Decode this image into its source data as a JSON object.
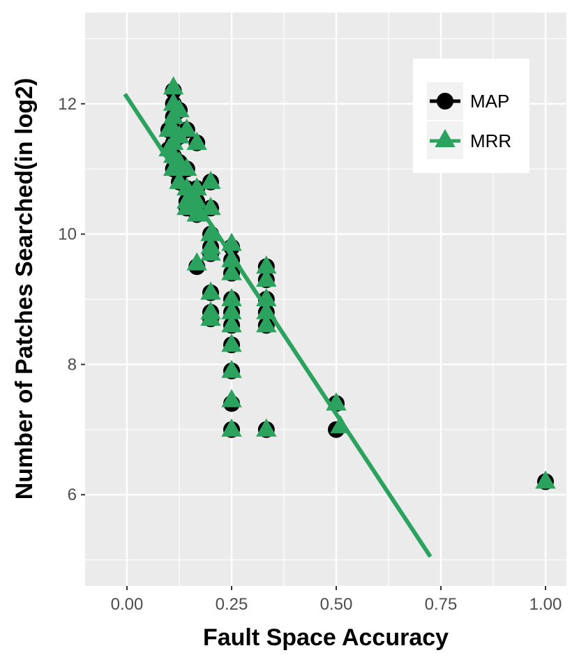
{
  "chart_data": {
    "type": "scatter",
    "title": "",
    "xlabel": "Fault Space Accuracy",
    "ylabel": "Number of Patches Searched(in log2)",
    "xlim": [
      -0.1,
      1.05
    ],
    "ylim": [
      4.6,
      13.4
    ],
    "x_ticks": [
      0.0,
      0.25,
      0.5,
      0.75,
      1.0
    ],
    "x_tick_labels": [
      "0.00",
      "0.25",
      "0.50",
      "0.75",
      "1.00"
    ],
    "y_ticks": [
      6,
      8,
      10,
      12
    ],
    "y_tick_labels": [
      "6",
      "8",
      "10",
      "12"
    ],
    "grid": true,
    "legend_position": "top-right",
    "colors": {
      "panel": "#ebebeb",
      "grid": "#ffffff",
      "map": "#000000",
      "mrr": "#2ca25f"
    },
    "series": [
      {
        "name": "MAP",
        "marker": "circle",
        "color": "#000000",
        "points": [
          [
            0.111,
            12.2
          ],
          [
            0.111,
            12.0
          ],
          [
            0.111,
            11.8
          ],
          [
            0.111,
            11.6
          ],
          [
            0.111,
            11.4
          ],
          [
            0.111,
            11.2
          ],
          [
            0.111,
            11.0
          ],
          [
            0.1,
            11.3
          ],
          [
            0.1,
            11.6
          ],
          [
            0.125,
            11.9
          ],
          [
            0.125,
            11.5
          ],
          [
            0.125,
            11.1
          ],
          [
            0.125,
            10.8
          ],
          [
            0.143,
            11.6
          ],
          [
            0.143,
            11.0
          ],
          [
            0.143,
            10.7
          ],
          [
            0.143,
            10.5
          ],
          [
            0.143,
            10.4
          ],
          [
            0.167,
            11.4
          ],
          [
            0.167,
            10.7
          ],
          [
            0.167,
            10.5
          ],
          [
            0.167,
            10.3
          ],
          [
            0.167,
            9.5
          ],
          [
            0.2,
            10.8
          ],
          [
            0.2,
            10.4
          ],
          [
            0.2,
            10.0
          ],
          [
            0.2,
            9.8
          ],
          [
            0.2,
            9.7
          ],
          [
            0.2,
            9.1
          ],
          [
            0.2,
            8.8
          ],
          [
            0.2,
            8.7
          ],
          [
            0.25,
            9.8
          ],
          [
            0.25,
            9.6
          ],
          [
            0.25,
            9.4
          ],
          [
            0.25,
            9.0
          ],
          [
            0.25,
            8.8
          ],
          [
            0.25,
            8.6
          ],
          [
            0.25,
            8.3
          ],
          [
            0.25,
            7.9
          ],
          [
            0.25,
            7.4
          ],
          [
            0.25,
            7.0
          ],
          [
            0.333,
            9.5
          ],
          [
            0.333,
            9.3
          ],
          [
            0.333,
            9.0
          ],
          [
            0.333,
            8.8
          ],
          [
            0.333,
            8.6
          ],
          [
            0.333,
            7.0
          ],
          [
            0.5,
            7.4
          ],
          [
            0.5,
            7.0
          ],
          [
            1.0,
            6.2
          ]
        ]
      },
      {
        "name": "MRR",
        "marker": "triangle",
        "color": "#2ca25f",
        "points": [
          [
            0.111,
            12.25
          ],
          [
            0.111,
            12.0
          ],
          [
            0.111,
            11.8
          ],
          [
            0.111,
            11.6
          ],
          [
            0.111,
            11.4
          ],
          [
            0.111,
            11.2
          ],
          [
            0.111,
            11.0
          ],
          [
            0.1,
            11.3
          ],
          [
            0.1,
            11.6
          ],
          [
            0.125,
            11.9
          ],
          [
            0.125,
            11.5
          ],
          [
            0.125,
            11.1
          ],
          [
            0.125,
            10.8
          ],
          [
            0.143,
            11.6
          ],
          [
            0.143,
            11.0
          ],
          [
            0.143,
            10.7
          ],
          [
            0.143,
            10.5
          ],
          [
            0.143,
            10.4
          ],
          [
            0.167,
            11.4
          ],
          [
            0.167,
            10.7
          ],
          [
            0.167,
            10.5
          ],
          [
            0.167,
            10.3
          ],
          [
            0.167,
            9.55
          ],
          [
            0.2,
            10.8
          ],
          [
            0.2,
            10.4
          ],
          [
            0.2,
            10.0
          ],
          [
            0.2,
            9.8
          ],
          [
            0.2,
            9.7
          ],
          [
            0.2,
            9.1
          ],
          [
            0.2,
            8.8
          ],
          [
            0.2,
            8.7
          ],
          [
            0.25,
            9.85
          ],
          [
            0.25,
            9.6
          ],
          [
            0.25,
            9.4
          ],
          [
            0.25,
            9.0
          ],
          [
            0.25,
            8.8
          ],
          [
            0.25,
            8.6
          ],
          [
            0.25,
            8.3
          ],
          [
            0.25,
            7.9
          ],
          [
            0.25,
            7.45
          ],
          [
            0.25,
            7.0
          ],
          [
            0.333,
            9.5
          ],
          [
            0.333,
            9.3
          ],
          [
            0.333,
            9.0
          ],
          [
            0.333,
            8.8
          ],
          [
            0.333,
            8.6
          ],
          [
            0.333,
            7.0
          ],
          [
            0.5,
            7.4
          ],
          [
            0.51,
            7.05
          ],
          [
            1.0,
            6.2
          ]
        ]
      }
    ],
    "trend_line": {
      "color": "#2ca25f",
      "x": [
        -0.005,
        0.725
      ],
      "y": [
        12.15,
        5.05
      ]
    }
  },
  "legend": {
    "items": [
      {
        "label": "MAP",
        "marker": "circle",
        "color": "#000000"
      },
      {
        "label": "MRR",
        "marker": "triangle",
        "color": "#2ca25f"
      }
    ]
  }
}
